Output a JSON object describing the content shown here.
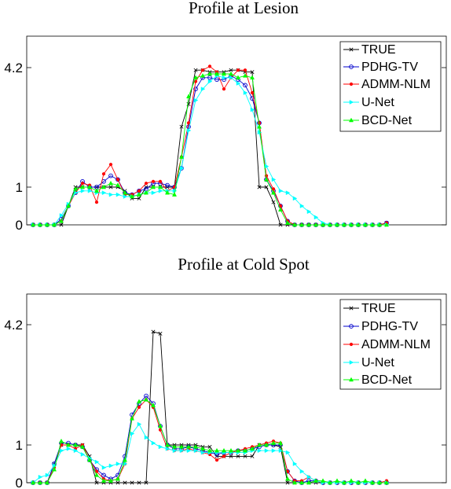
{
  "chart_data": [
    {
      "type": "line",
      "title": "Profile at Lesion",
      "xlabel": "",
      "ylabel": "",
      "ylim": [
        0,
        5.4
      ],
      "xlim": [
        0,
        60
      ],
      "yticks": [
        0,
        1,
        4.2
      ],
      "ytick_labels": [
        "0",
        "1",
        "4.2"
      ],
      "grid": false,
      "legend_position": "top-right",
      "series": [
        {
          "name": "TRUE",
          "color": "#000000",
          "marker": "x",
          "values": [
            0,
            0,
            0,
            0,
            0,
            0.5,
            1,
            1,
            1,
            1,
            1,
            1,
            1,
            0.9,
            0.7,
            0.7,
            1,
            1,
            1,
            1,
            1,
            2.6,
            3.2,
            4.1,
            4.1,
            4.05,
            4.05,
            4.05,
            4.1,
            4.1,
            4.05,
            4.05,
            1,
            1,
            0.6,
            0,
            0,
            0,
            0,
            0,
            0,
            0,
            0,
            0,
            0,
            0,
            0,
            0,
            0,
            0,
            0.05
          ]
        },
        {
          "name": "PDHG-TV",
          "color": "#0000cc",
          "marker": "o",
          "values": [
            0,
            0,
            0,
            0,
            0.15,
            0.5,
            0.85,
            1.15,
            1,
            1,
            1.15,
            1.3,
            1.2,
            0.85,
            0.8,
            0.9,
            0.95,
            1.1,
            1.1,
            1.05,
            1,
            1.5,
            2.6,
            3.6,
            3.9,
            3.9,
            3.85,
            3.85,
            3.95,
            3.85,
            3.7,
            3.35,
            2.7,
            1.2,
            0.9,
            0.5,
            0.1,
            0,
            0,
            0,
            0,
            0,
            0,
            0,
            0,
            0,
            0,
            0,
            0,
            0,
            0.05
          ]
        },
        {
          "name": "ADMM-NLM",
          "color": "#ff0000",
          "marker": "dot",
          "values": [
            0,
            0,
            0,
            0,
            0.1,
            0.5,
            0.85,
            1.1,
            1.05,
            0.6,
            1.35,
            1.6,
            1.2,
            0.8,
            0.8,
            0.9,
            1.1,
            1.15,
            1.15,
            0.9,
            1,
            1.8,
            2.7,
            3.8,
            4.1,
            4.2,
            4.05,
            3.6,
            3.9,
            4.1,
            4.1,
            3.5,
            2.7,
            1.3,
            0.95,
            0.5,
            0.1,
            0,
            0,
            0,
            0,
            0,
            0,
            0,
            0,
            0,
            0,
            0,
            0,
            0,
            0.05
          ]
        },
        {
          "name": "U-Net",
          "color": "#00ffff",
          "marker": "triangle-right",
          "values": [
            0,
            0,
            0,
            0,
            0.25,
            0.55,
            0.85,
            0.9,
            0.9,
            0.85,
            0.85,
            0.8,
            0.8,
            0.75,
            0.75,
            0.8,
            0.85,
            0.85,
            0.9,
            0.9,
            0.9,
            1.5,
            2.5,
            3.3,
            3.6,
            3.8,
            3.95,
            3.9,
            3.9,
            3.75,
            3.5,
            3.05,
            2.45,
            1.55,
            1.2,
            0.9,
            0.85,
            0.7,
            0.5,
            0.35,
            0.2,
            0.05,
            0,
            0,
            0,
            0,
            0,
            0,
            0,
            0,
            0
          ]
        },
        {
          "name": "BCD-Net",
          "color": "#00ff00",
          "marker": "triangle-up",
          "values": [
            0,
            0,
            0,
            0,
            0.1,
            0.5,
            0.95,
            1,
            1,
            0.9,
            1,
            1.1,
            1.05,
            0.85,
            0.75,
            0.8,
            0.85,
            1,
            1,
            0.85,
            0.8,
            1.8,
            3.4,
            3.9,
            3.95,
            4,
            4,
            4,
            4,
            3.9,
            3.95,
            3.9,
            2.6,
            1.2,
            0.85,
            0.4,
            0.05,
            0,
            0,
            0,
            0,
            0,
            0,
            0,
            0,
            0,
            0,
            0,
            0,
            0,
            0
          ]
        }
      ]
    },
    {
      "type": "line",
      "title": "Profile at Cold Spot",
      "xlabel": "",
      "ylabel": "",
      "ylim": [
        0,
        5.0
      ],
      "xlim": [
        0,
        60
      ],
      "yticks": [
        0,
        1,
        4.2
      ],
      "ytick_labels": [
        "0",
        "1",
        "4.2"
      ],
      "grid": false,
      "legend_position": "top-right",
      "series": [
        {
          "name": "TRUE",
          "color": "#000000",
          "marker": "x",
          "values": [
            0,
            0,
            0,
            0.5,
            1,
            1,
            1,
            1,
            0.7,
            0,
            0,
            0,
            0,
            0,
            0,
            0,
            0,
            4.0,
            3.95,
            1,
            1,
            1,
            1,
            1,
            0.95,
            0.95,
            0.7,
            0.7,
            0.7,
            0.7,
            0.7,
            0.7,
            1,
            1,
            1,
            0.95,
            0,
            0,
            0,
            0,
            0,
            0,
            0,
            0,
            0,
            0,
            0,
            0,
            0,
            0,
            0
          ]
        },
        {
          "name": "PDHG-TV",
          "color": "#0000cc",
          "marker": "o",
          "values": [
            0,
            0,
            0,
            0.5,
            1.05,
            1.05,
            1,
            0.95,
            0.6,
            0.35,
            0.2,
            0.1,
            0.2,
            0.7,
            1.8,
            2.1,
            2.3,
            2.1,
            1.5,
            1,
            0.9,
            0.9,
            0.95,
            0.9,
            0.85,
            0.8,
            0.75,
            0.8,
            0.8,
            0.85,
            0.85,
            0.9,
            0.95,
            1.0,
            1.0,
            1.0,
            0.3,
            0.05,
            0,
            0.05,
            0.05,
            0,
            0,
            0,
            0,
            0,
            0,
            0,
            0,
            0,
            0
          ]
        },
        {
          "name": "ADMM-NLM",
          "color": "#ff0000",
          "marker": "dot",
          "values": [
            0,
            0,
            0,
            0.4,
            1,
            1,
            0.9,
            1,
            0.6,
            0.3,
            0.1,
            0.05,
            0.1,
            0.5,
            1.7,
            2.0,
            2.2,
            2.0,
            1.4,
            0.9,
            0.85,
            0.85,
            0.9,
            0.85,
            0.8,
            0.75,
            0.6,
            0.7,
            0.8,
            0.85,
            0.9,
            0.95,
            1.0,
            1.05,
            1.1,
            1.05,
            0.3,
            0.05,
            0.05,
            0.15,
            0.05,
            0,
            0,
            0,
            0,
            0,
            0,
            0,
            0,
            0,
            0.05
          ]
        },
        {
          "name": "U-Net",
          "color": "#00ffff",
          "marker": "triangle-right",
          "values": [
            0,
            0.15,
            0.2,
            0.45,
            0.85,
            0.9,
            0.85,
            0.75,
            0.65,
            0.55,
            0.4,
            0.45,
            0.5,
            0.5,
            1.3,
            1.55,
            1.2,
            1.05,
            0.95,
            0.9,
            0.85,
            0.85,
            0.85,
            0.85,
            0.8,
            0.8,
            0.8,
            0.8,
            0.8,
            0.8,
            0.8,
            0.85,
            0.85,
            0.85,
            0.85,
            0.85,
            0.8,
            0.5,
            0.3,
            0.15,
            0.05,
            0,
            0,
            0,
            0,
            0,
            0,
            0,
            0,
            0,
            0
          ]
        },
        {
          "name": "BCD-Net",
          "color": "#00ff00",
          "marker": "triangle-up",
          "values": [
            0,
            0,
            0,
            0.35,
            1.1,
            1,
            1,
            0.95,
            0.6,
            0.2,
            0.05,
            0.05,
            0.1,
            0.6,
            1.7,
            2.15,
            2.2,
            2.05,
            1.5,
            1.0,
            0.95,
            0.95,
            0.95,
            0.95,
            0.9,
            0.85,
            0.85,
            0.85,
            0.85,
            0.85,
            0.85,
            0.9,
            1.0,
            1.0,
            1.05,
            1.05,
            0.1,
            0,
            0,
            0,
            0.05,
            0.05,
            0,
            0.05,
            0,
            0.05,
            0,
            0.05,
            0,
            0,
            0
          ]
        }
      ]
    }
  ]
}
